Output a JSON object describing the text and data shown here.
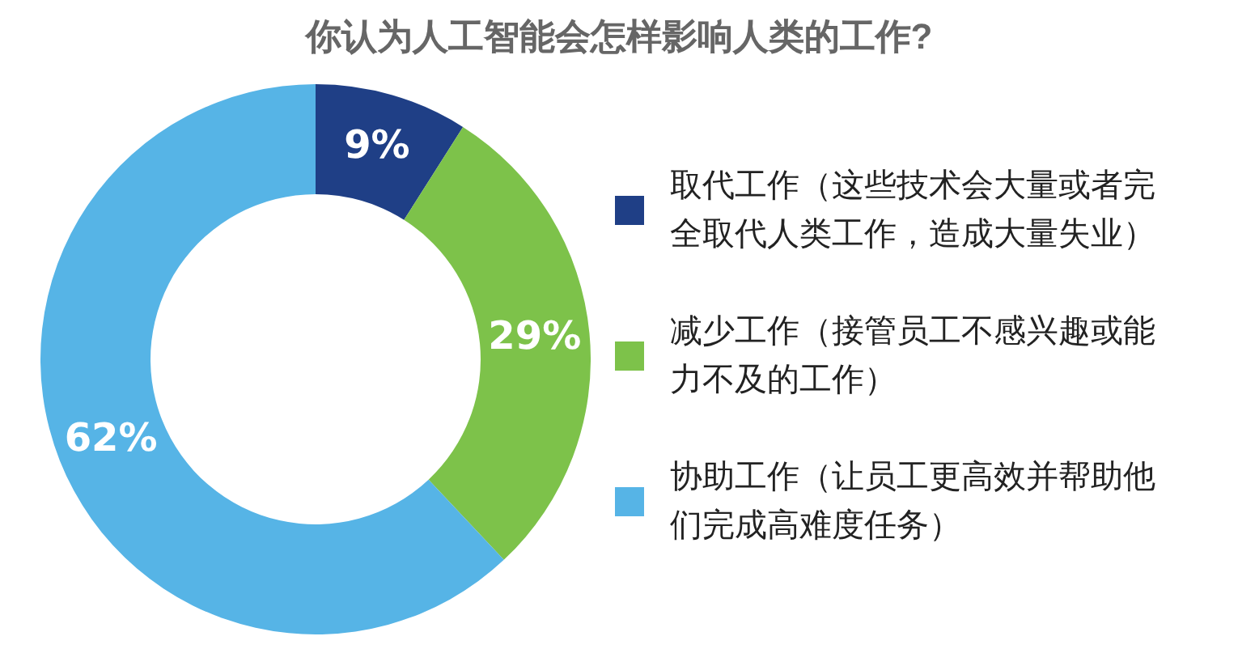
{
  "chart_data": {
    "type": "donut",
    "title": "你认为人工智能会怎样影响人类的工作?",
    "categories": [
      "取代工作（这些技术会大量或者完全取代人类工作，造成大量失业）",
      "减少工作（接管员工不感兴趣或能力不及的工作）",
      "协助工作（让员工更高效并帮助他们完成高难度任务）"
    ],
    "values": [
      9,
      29,
      62
    ],
    "colors": [
      "#1f3f86",
      "#7dc24a",
      "#56b4e6"
    ],
    "value_labels": [
      "9%",
      "29%",
      "62%"
    ],
    "legend": "right"
  }
}
